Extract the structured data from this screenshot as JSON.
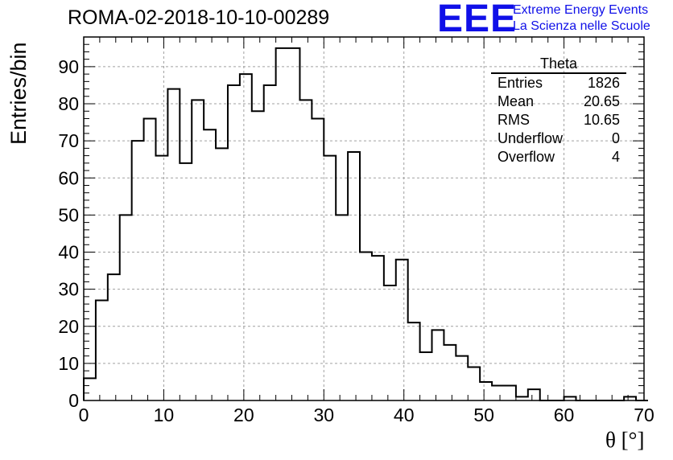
{
  "title": "ROMA-02-2018-10-10-00289",
  "logo": {
    "text": "EEE",
    "line1": "Extreme Energy Events",
    "line2": "La Scienza nelle Scuole",
    "color": "#1010e8"
  },
  "stats": {
    "name": "Theta",
    "rows": [
      {
        "label": "Entries",
        "value": "1826"
      },
      {
        "label": "Mean",
        "value": "20.65"
      },
      {
        "label": "RMS",
        "value": "10.65"
      },
      {
        "label": "Underflow",
        "value": "0"
      },
      {
        "label": "Overflow",
        "value": "4"
      }
    ]
  },
  "chart_data": {
    "type": "bar",
    "style": "step-histogram",
    "title": "ROMA-02-2018-10-10-00289",
    "xlabel": "θ [°]",
    "ylabel": "Entries/bin",
    "xlim": [
      0,
      70
    ],
    "ylim": [
      0,
      98
    ],
    "bin_width": 1.5,
    "x_ticks": [
      0,
      10,
      20,
      30,
      40,
      50,
      60,
      70
    ],
    "y_ticks": [
      0,
      10,
      20,
      30,
      40,
      50,
      60,
      70,
      80,
      90
    ],
    "grid": true,
    "bin_edges_start": 0,
    "values": [
      6,
      27,
      34,
      50,
      70,
      76,
      66,
      84,
      64,
      81,
      73,
      68,
      85,
      88,
      78,
      85,
      95,
      95,
      81,
      76,
      66,
      50,
      67,
      40,
      39,
      31,
      38,
      21,
      13,
      19,
      15,
      12,
      9,
      5,
      4,
      4,
      1,
      3,
      0,
      0,
      1,
      0,
      0,
      0,
      0,
      1,
      0
    ]
  }
}
